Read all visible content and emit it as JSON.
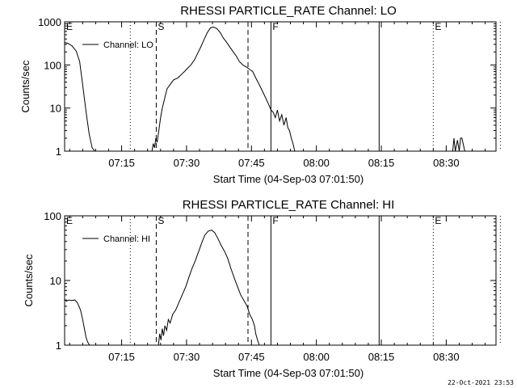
{
  "chart_data": [
    {
      "type": "line",
      "title": "RHESSI PARTICLE_RATE Channel: LO",
      "xlabel": "Start Time (04-Sep-03 07:01:50)",
      "ylabel": "Counts/sec",
      "yscale": "log",
      "ylim": [
        1,
        1000
      ],
      "xlim_minutes_after_0700": [
        1.83,
        101.5
      ],
      "y_tick_labels": [
        "1",
        "10",
        "100",
        "1000"
      ],
      "y_tick_values": [
        1,
        10,
        100,
        1000
      ],
      "x_tick_labels": [
        "07:15",
        "07:30",
        "07:45",
        "08:00",
        "08:15",
        "08:30"
      ],
      "x_tick_minutes_after_0700": [
        15,
        30,
        45,
        60,
        75,
        90
      ],
      "legend": "Channel: LO",
      "markers": [
        {
          "label": "E",
          "minute": 1.83,
          "style": "solid"
        },
        {
          "label": "",
          "minute": 17.0,
          "style": "dotted"
        },
        {
          "label": "S",
          "minute": 23.0,
          "style": "dashed"
        },
        {
          "label": "",
          "minute": 44.2,
          "style": "dashed"
        },
        {
          "label": "F",
          "minute": 49.5,
          "style": "solid"
        },
        {
          "label": "",
          "minute": 74.5,
          "style": "solid"
        },
        {
          "label": "E",
          "minute": 87.0,
          "style": "dotted"
        },
        {
          "label": "",
          "minute": 102.5,
          "style": "dotted"
        }
      ],
      "series": [
        {
          "name": "Channel: LO",
          "x": [
            1.83,
            2.5,
            3.5,
            4.5,
            5.3,
            6.0,
            6.8,
            7.5,
            8.2,
            8.8
          ],
          "y": [
            330,
            320,
            280,
            210,
            120,
            35,
            8,
            2.5,
            1.2,
            1
          ]
        },
        {
          "name": "Channel: LO",
          "x": [
            22.0,
            22.3,
            22.6,
            22.9,
            23.2,
            23.6,
            24.0,
            24.4,
            24.9,
            25.5,
            26.2,
            27.0,
            28.0,
            28.8,
            29.5,
            30.3,
            31.0,
            31.8,
            32.5,
            33.2,
            34.0,
            34.8,
            35.5,
            36.2,
            37.0,
            37.8,
            38.5,
            39.3,
            40.0,
            40.8,
            41.5,
            42.2,
            43.0,
            43.8,
            44.5,
            45.3,
            46.0,
            46.8,
            47.5,
            48.2,
            49.0,
            49.5,
            50.0,
            50.5,
            51.0,
            51.5,
            52.0,
            52.5,
            53.0,
            53.4,
            53.8,
            54.2,
            54.6,
            55.0
          ],
          "y": [
            1,
            1.5,
            1.2,
            2.0,
            1.6,
            3.0,
            6.0,
            10,
            16,
            28,
            35,
            45,
            50,
            60,
            70,
            85,
            100,
            130,
            180,
            250,
            380,
            560,
            720,
            760,
            700,
            560,
            420,
            330,
            260,
            200,
            160,
            120,
            100,
            90,
            80,
            70,
            50,
            35,
            25,
            18,
            12,
            9,
            8,
            6,
            9,
            5,
            7,
            4,
            6,
            3.5,
            3,
            2,
            1.5,
            1
          ]
        },
        {
          "name": "Channel: LO",
          "x": [
            91.5,
            91.8,
            92.1,
            92.6,
            93.0,
            93.3,
            93.6,
            93.9,
            94.3
          ],
          "y": [
            1,
            2,
            1,
            1.8,
            1,
            2,
            2,
            1.5,
            1
          ]
        }
      ]
    },
    {
      "type": "line",
      "title": "RHESSI PARTICLE_RATE Channel: HI",
      "xlabel": "Start Time (04-Sep-03 07:01:50)",
      "ylabel": "Counts/sec",
      "yscale": "log",
      "ylim": [
        1,
        100
      ],
      "xlim_minutes_after_0700": [
        1.83,
        101.5
      ],
      "y_tick_labels": [
        "1",
        "10",
        "100"
      ],
      "y_tick_values": [
        1,
        10,
        100
      ],
      "x_tick_labels": [
        "07:15",
        "07:30",
        "07:45",
        "08:00",
        "08:15",
        "08:30"
      ],
      "x_tick_minutes_after_0700": [
        15,
        30,
        45,
        60,
        75,
        90
      ],
      "legend": "Channel: HI",
      "markers": [
        {
          "label": "E",
          "minute": 1.83,
          "style": "solid"
        },
        {
          "label": "",
          "minute": 17.0,
          "style": "dotted"
        },
        {
          "label": "S",
          "minute": 23.0,
          "style": "dashed"
        },
        {
          "label": "",
          "minute": 44.2,
          "style": "dashed"
        },
        {
          "label": "F",
          "minute": 49.5,
          "style": "solid"
        },
        {
          "label": "",
          "minute": 74.5,
          "style": "solid"
        },
        {
          "label": "E",
          "minute": 87.0,
          "style": "dotted"
        },
        {
          "label": "",
          "minute": 102.5,
          "style": "dotted"
        }
      ],
      "series": [
        {
          "name": "Channel: HI",
          "x": [
            1.83,
            2.3,
            2.8,
            3.5,
            4.2,
            4.8,
            5.5,
            6.0,
            6.4,
            6.8,
            7.2,
            7.6
          ],
          "y": [
            5,
            4.8,
            5,
            4.9,
            5,
            4.5,
            3.5,
            2.5,
            1.8,
            1.3,
            1.1,
            1
          ]
        },
        {
          "name": "Channel: HI",
          "x": [
            23.5,
            23.8,
            24.1,
            24.4,
            24.7,
            25.0,
            25.4,
            25.8,
            26.2,
            26.8,
            27.5,
            28.2,
            29.0,
            29.8,
            30.5,
            31.2,
            32.0,
            32.8,
            33.5,
            34.2,
            35.0,
            35.8,
            36.5,
            37.2,
            38.0,
            38.8,
            39.5,
            40.3,
            41.0,
            41.8,
            42.5,
            43.2,
            44.0,
            44.6,
            45.2,
            45.7,
            46.0,
            46.4,
            46.8
          ],
          "y": [
            1,
            1.5,
            1.2,
            1.8,
            1.4,
            2.0,
            1.7,
            2.5,
            2.2,
            3.0,
            3.5,
            4.5,
            6,
            8,
            11,
            15,
            20,
            28,
            38,
            50,
            58,
            60,
            55,
            45,
            35,
            28,
            22,
            15,
            11,
            8,
            6,
            5,
            4,
            3,
            2.5,
            2,
            1.5,
            1.2,
            1
          ]
        }
      ]
    }
  ],
  "timestamp": "22-Oct-2021 23:53"
}
